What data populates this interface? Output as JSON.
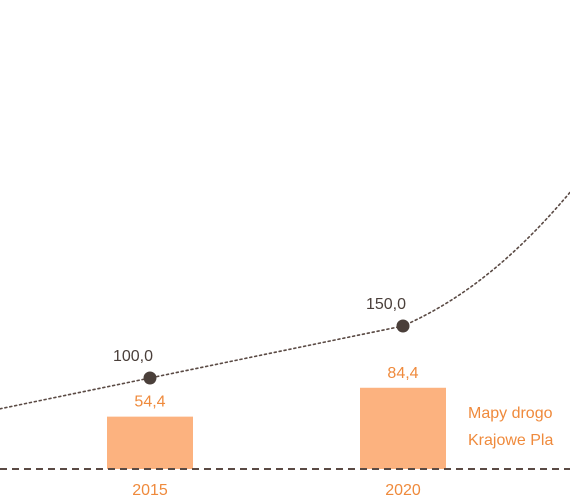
{
  "chart_data": {
    "type": "bar",
    "categories": [
      "2015",
      "2020"
    ],
    "series": [
      {
        "type": "bar",
        "values": [
          54.4,
          84.4
        ],
        "labels": [
          "54,4",
          "84,4"
        ],
        "color": "#fcb27f",
        "label_color": "#ef8a3c"
      },
      {
        "type": "line",
        "style": "dotted",
        "values": [
          100.0,
          150.0
        ],
        "labels": [
          "100,0",
          "150,0"
        ],
        "color": "#5a4a44",
        "label_color": "#4a3f3a"
      }
    ],
    "legend": {
      "placement": "right",
      "lines": [
        "Mapy drogo",
        "Krajowe Pla"
      ],
      "color": "#ef8a3c"
    },
    "baseline": {
      "style": "dashed",
      "color": "#5a4a44"
    },
    "grid": false
  }
}
